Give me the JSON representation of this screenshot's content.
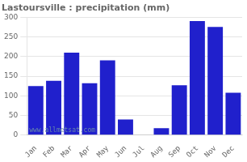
{
  "chart_data": {
    "type": "bar",
    "title": "Lastoursville : precipitation (mm)",
    "categories": [
      "Jan",
      "Feb",
      "Mar",
      "Apr",
      "May",
      "Jun",
      "Jul",
      "Aug",
      "Sep",
      "Oct",
      "Nov",
      "Dec"
    ],
    "values": [
      125,
      138,
      210,
      132,
      190,
      40,
      0,
      18,
      127,
      290,
      275,
      108
    ],
    "color": "#2020cc",
    "ylim": [
      0,
      300
    ],
    "yticks": [
      0,
      50,
      100,
      150,
      200,
      250,
      300
    ],
    "grid": true,
    "annotations": [
      "www.allmetsat.com"
    ]
  }
}
